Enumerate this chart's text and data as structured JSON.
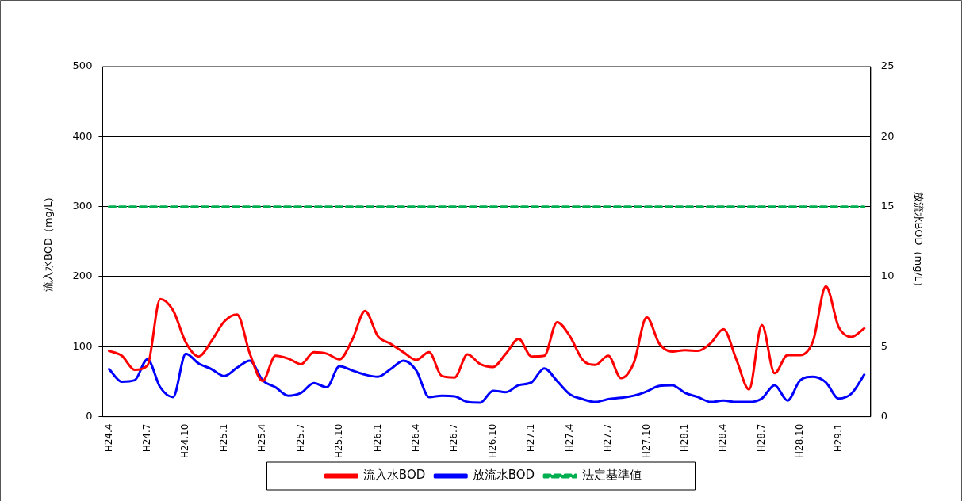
{
  "chart_data": {
    "type": "line",
    "ylabel": "流入水BOD（mg/L）",
    "y2label": "放流水BOD（mg/L）",
    "categories": [
      "H24.4",
      null,
      null,
      "H24.7",
      null,
      null,
      "H24.10",
      null,
      null,
      "H25.1",
      null,
      null,
      "H25.4",
      null,
      null,
      "H25.7",
      null,
      null,
      "H25.10",
      null,
      null,
      "H26.1",
      null,
      null,
      "H26.4",
      null,
      null,
      "H26.7",
      null,
      null,
      "H26.10",
      null,
      null,
      "H27.1",
      null,
      null,
      "H27.4",
      null,
      null,
      "H27.7",
      null,
      null,
      "H27.10",
      null,
      null,
      "H28.1",
      null,
      null,
      "H28.4",
      null,
      null,
      "H28.7",
      null,
      null,
      "H28.10",
      null,
      null,
      "H29.1",
      null,
      null
    ],
    "series": [
      {
        "name": "流入水BOD",
        "color": "#ff0000",
        "values": [
          94,
          87,
          67,
          73,
          168,
          152,
          106,
          86,
          108,
          136,
          146,
          90,
          51,
          87,
          83,
          75,
          92,
          90,
          82,
          110,
          151,
          115,
          104,
          92,
          81,
          92,
          58,
          56,
          89,
          75,
          71,
          90,
          111,
          86,
          87,
          135,
          115,
          81,
          74,
          87,
          55,
          77,
          142,
          104,
          93,
          95,
          94,
          105,
          125,
          82,
          39,
          131,
          62,
          88,
          88,
          108,
          186,
          128,
          114,
          126
        ]
      },
      {
        "name": "放流水BOD",
        "color": "#0000ff",
        "axis": "y2",
        "values": [
          3.4,
          2.5,
          2.6,
          4.1,
          2.1,
          1.4,
          4.5,
          3.8,
          3.4,
          2.9,
          3.5,
          4.0,
          2.6,
          2.1,
          1.5,
          1.7,
          2.4,
          2.1,
          3.6,
          3.3,
          3.0,
          2.85,
          3.4,
          4.0,
          3.3,
          1.4,
          1.5,
          1.45,
          1.05,
          1.0,
          1.85,
          1.75,
          2.25,
          2.45,
          3.45,
          2.55,
          1.6,
          1.25,
          1.05,
          1.25,
          1.35,
          1.5,
          1.8,
          2.2,
          2.25,
          1.7,
          1.4,
          1.05,
          1.15,
          1.05,
          1.05,
          1.3,
          2.25,
          1.15,
          2.6,
          2.85,
          2.45,
          1.3,
          1.65,
          3.0
        ]
      },
      {
        "name": "法定基準値",
        "color": "#00b050",
        "line_style": "dashed",
        "values": [
          300,
          300,
          300,
          300,
          300,
          300,
          300,
          300,
          300,
          300,
          300,
          300,
          300,
          300,
          300,
          300,
          300,
          300,
          300,
          300,
          300,
          300,
          300,
          300,
          300,
          300,
          300,
          300,
          300,
          300,
          300,
          300,
          300,
          300,
          300,
          300,
          300,
          300,
          300,
          300,
          300,
          300,
          300,
          300,
          300,
          300,
          300,
          300,
          300,
          300,
          300,
          300,
          300,
          300,
          300,
          300,
          300,
          300,
          300,
          300
        ]
      }
    ],
    "ylim": [
      0,
      500
    ],
    "yticks": [
      0,
      100,
      200,
      300,
      400,
      500
    ],
    "y2lim": [
      0,
      25
    ],
    "y2ticks": [
      0,
      5,
      10,
      15,
      20,
      25
    ],
    "grid": "y",
    "legend": "bottom",
    "marker": "none",
    "line_style": "solid"
  }
}
